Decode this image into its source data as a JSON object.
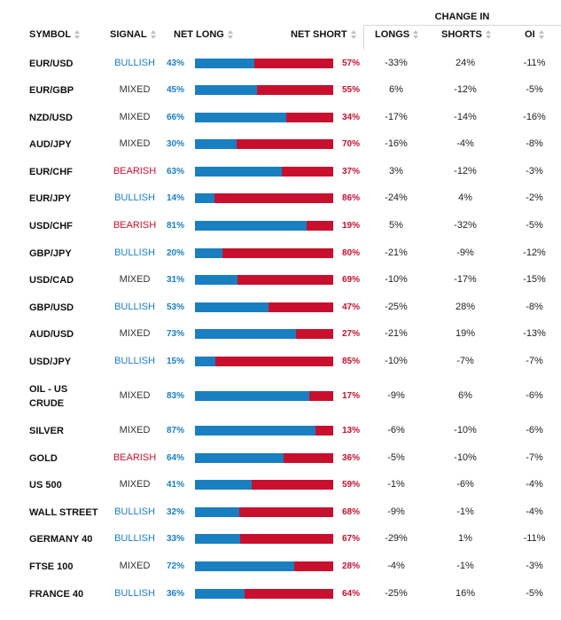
{
  "header": {
    "change_in": "CHANGE IN",
    "symbol": "SYMBOL",
    "signal": "SIGNAL",
    "net_long": "NET LONG",
    "net_short": "NET SHORT",
    "longs": "LONGS",
    "shorts": "SHORTS",
    "oi": "OI"
  },
  "rows": [
    {
      "symbol": "EUR/USD",
      "signal": "BULLISH",
      "net_long": "43%",
      "net_short": "57%",
      "long_fraction": 0.43,
      "longs": "-33%",
      "shorts": "24%",
      "oi": "-11%"
    },
    {
      "symbol": "EUR/GBP",
      "signal": "MIXED",
      "net_long": "45%",
      "net_short": "55%",
      "long_fraction": 0.45,
      "longs": "6%",
      "shorts": "-12%",
      "oi": "-5%"
    },
    {
      "symbol": "NZD/USD",
      "signal": "MIXED",
      "net_long": "66%",
      "net_short": "34%",
      "long_fraction": 0.66,
      "longs": "-17%",
      "shorts": "-14%",
      "oi": "-16%"
    },
    {
      "symbol": "AUD/JPY",
      "signal": "MIXED",
      "net_long": "30%",
      "net_short": "70%",
      "long_fraction": 0.3,
      "longs": "-16%",
      "shorts": "-4%",
      "oi": "-8%"
    },
    {
      "symbol": "EUR/CHF",
      "signal": "BEARISH",
      "net_long": "63%",
      "net_short": "37%",
      "long_fraction": 0.63,
      "longs": "3%",
      "shorts": "-12%",
      "oi": "-3%"
    },
    {
      "symbol": "EUR/JPY",
      "signal": "BULLISH",
      "net_long": "14%",
      "net_short": "86%",
      "long_fraction": 0.14,
      "longs": "-24%",
      "shorts": "4%",
      "oi": "-2%"
    },
    {
      "symbol": "USD/CHF",
      "signal": "BEARISH",
      "net_long": "81%",
      "net_short": "19%",
      "long_fraction": 0.81,
      "longs": "5%",
      "shorts": "-32%",
      "oi": "-5%"
    },
    {
      "symbol": "GBP/JPY",
      "signal": "BULLISH",
      "net_long": "20%",
      "net_short": "80%",
      "long_fraction": 0.2,
      "longs": "-21%",
      "shorts": "-9%",
      "oi": "-12%"
    },
    {
      "symbol": "USD/CAD",
      "signal": "MIXED",
      "net_long": "31%",
      "net_short": "69%",
      "long_fraction": 0.31,
      "longs": "-10%",
      "shorts": "-17%",
      "oi": "-15%"
    },
    {
      "symbol": "GBP/USD",
      "signal": "BULLISH",
      "net_long": "53%",
      "net_short": "47%",
      "long_fraction": 0.53,
      "longs": "-25%",
      "shorts": "28%",
      "oi": "-8%"
    },
    {
      "symbol": "AUD/USD",
      "signal": "MIXED",
      "net_long": "73%",
      "net_short": "27%",
      "long_fraction": 0.73,
      "longs": "-21%",
      "shorts": "19%",
      "oi": "-13%"
    },
    {
      "symbol": "USD/JPY",
      "signal": "BULLISH",
      "net_long": "15%",
      "net_short": "85%",
      "long_fraction": 0.15,
      "longs": "-10%",
      "shorts": "-7%",
      "oi": "-7%"
    },
    {
      "symbol": "OIL - US CRUDE",
      "signal": "MIXED",
      "net_long": "83%",
      "net_short": "17%",
      "long_fraction": 0.83,
      "longs": "-9%",
      "shorts": "6%",
      "oi": "-6%"
    },
    {
      "symbol": "SILVER",
      "signal": "MIXED",
      "net_long": "87%",
      "net_short": "13%",
      "long_fraction": 0.87,
      "longs": "-6%",
      "shorts": "-10%",
      "oi": "-6%"
    },
    {
      "symbol": "GOLD",
      "signal": "BEARISH",
      "net_long": "64%",
      "net_short": "36%",
      "long_fraction": 0.64,
      "longs": "-5%",
      "shorts": "-10%",
      "oi": "-7%"
    },
    {
      "symbol": "US 500",
      "signal": "MIXED",
      "net_long": "41%",
      "net_short": "59%",
      "long_fraction": 0.41,
      "longs": "-1%",
      "shorts": "-6%",
      "oi": "-4%"
    },
    {
      "symbol": "WALL STREET",
      "signal": "BULLISH",
      "net_long": "32%",
      "net_short": "68%",
      "long_fraction": 0.32,
      "longs": "-9%",
      "shorts": "-1%",
      "oi": "-4%"
    },
    {
      "symbol": "GERMANY 40",
      "signal": "BULLISH",
      "net_long": "33%",
      "net_short": "67%",
      "long_fraction": 0.33,
      "longs": "-29%",
      "shorts": "1%",
      "oi": "-11%"
    },
    {
      "symbol": "FTSE 100",
      "signal": "MIXED",
      "net_long": "72%",
      "net_short": "28%",
      "long_fraction": 0.72,
      "longs": "-4%",
      "shorts": "-1%",
      "oi": "-3%"
    },
    {
      "symbol": "FRANCE 40",
      "signal": "BULLISH",
      "net_long": "36%",
      "net_short": "64%",
      "long_fraction": 0.36,
      "longs": "-25%",
      "shorts": "16%",
      "oi": "-5%"
    }
  ],
  "colors": {
    "bullish": "#1a7fc1",
    "bearish": "#c8102e",
    "mixed": "#333333",
    "long_bar": "#1a7fc1",
    "short_bar": "#c8102e"
  }
}
